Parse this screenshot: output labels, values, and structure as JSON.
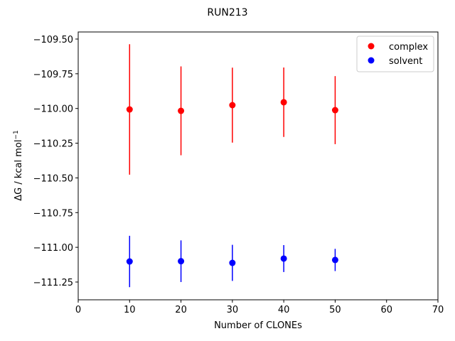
{
  "chart_data": {
    "type": "errorbar-scatter",
    "title": "RUN213",
    "xlabel": "Number of CLONEs",
    "ylabel": {
      "text": "ΔG / kcal mol",
      "superscript": "−1"
    },
    "xlim": [
      0,
      70
    ],
    "xticks": [
      0,
      10,
      20,
      30,
      40,
      50,
      60,
      70
    ],
    "ylim": [
      -111.378,
      -109.449
    ],
    "yticks": [
      {
        "value": -111.25,
        "label": "−111.25"
      },
      {
        "value": -111.0,
        "label": "−111.00"
      },
      {
        "value": -110.75,
        "label": "−110.75"
      },
      {
        "value": -110.5,
        "label": "−110.50"
      },
      {
        "value": -110.25,
        "label": "−110.25"
      },
      {
        "value": -110.0,
        "label": "−110.00"
      },
      {
        "value": -109.75,
        "label": "−109.75"
      },
      {
        "value": -109.5,
        "label": "−109.50"
      }
    ],
    "legend": "upper right",
    "series": [
      {
        "name": "complex",
        "color": "#ff0000",
        "x": [
          10,
          20,
          30,
          40,
          50
        ],
        "values": [
          -110.007,
          -110.017,
          -109.976,
          -109.955,
          -110.012
        ],
        "errors": [
          0.47,
          0.32,
          0.27,
          0.25,
          0.245
        ]
      },
      {
        "name": "solvent",
        "color": "#0000ff",
        "x": [
          10,
          20,
          30,
          40,
          50
        ],
        "values": [
          -111.102,
          -111.1,
          -111.112,
          -111.081,
          -111.091
        ],
        "errors": [
          0.185,
          0.15,
          0.13,
          0.097,
          0.08
        ]
      }
    ]
  }
}
